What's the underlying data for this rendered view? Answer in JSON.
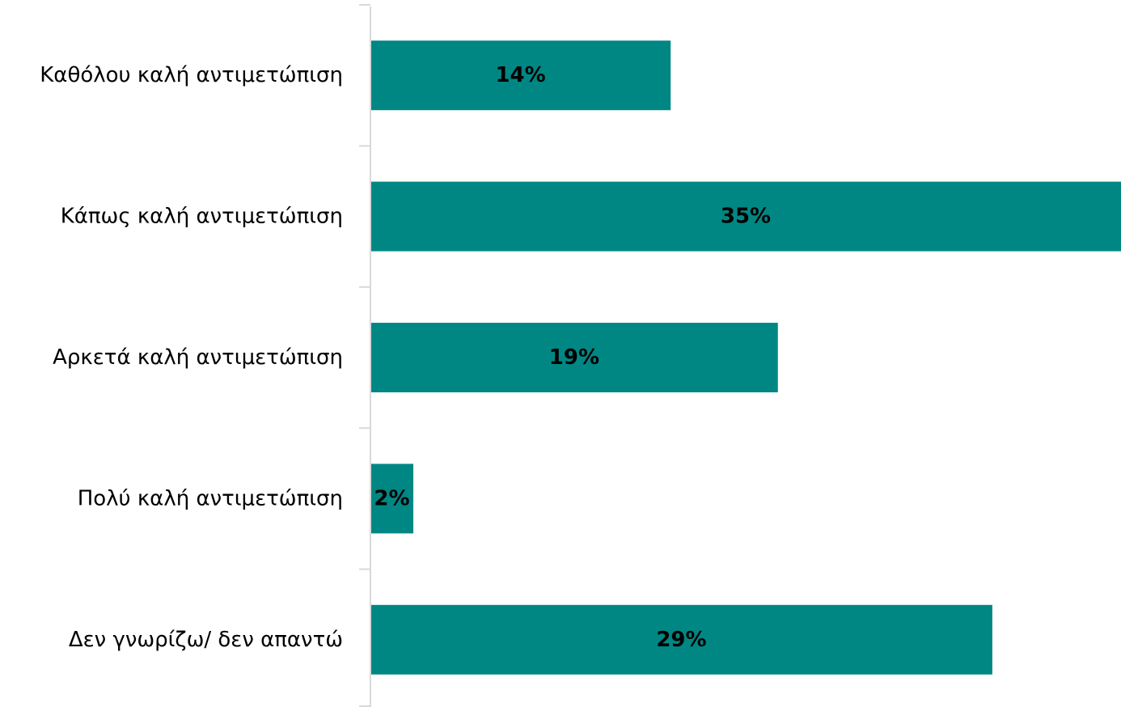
{
  "chart_data": {
    "type": "bar",
    "orientation": "horizontal",
    "categories": [
      "Καθόλου καλή αντιμετώπιση",
      "Κάπως καλή αντιμετώπιση",
      "Αρκετά καλή αντιμετώπιση",
      "Πολύ καλή αντιμετώπιση",
      "Δεν γνωρίζω/ δεν απαντώ"
    ],
    "values": [
      14,
      35,
      19,
      2,
      29
    ],
    "value_labels": [
      "14%",
      "35%",
      "19%",
      "2%",
      "29%"
    ],
    "unit": "%",
    "xlim": [
      0,
      35
    ],
    "bar_color": "#008784",
    "axis_color": "#d9d9d9",
    "grid": false,
    "legend": "none",
    "title": "",
    "xlabel": "",
    "ylabel": ""
  }
}
